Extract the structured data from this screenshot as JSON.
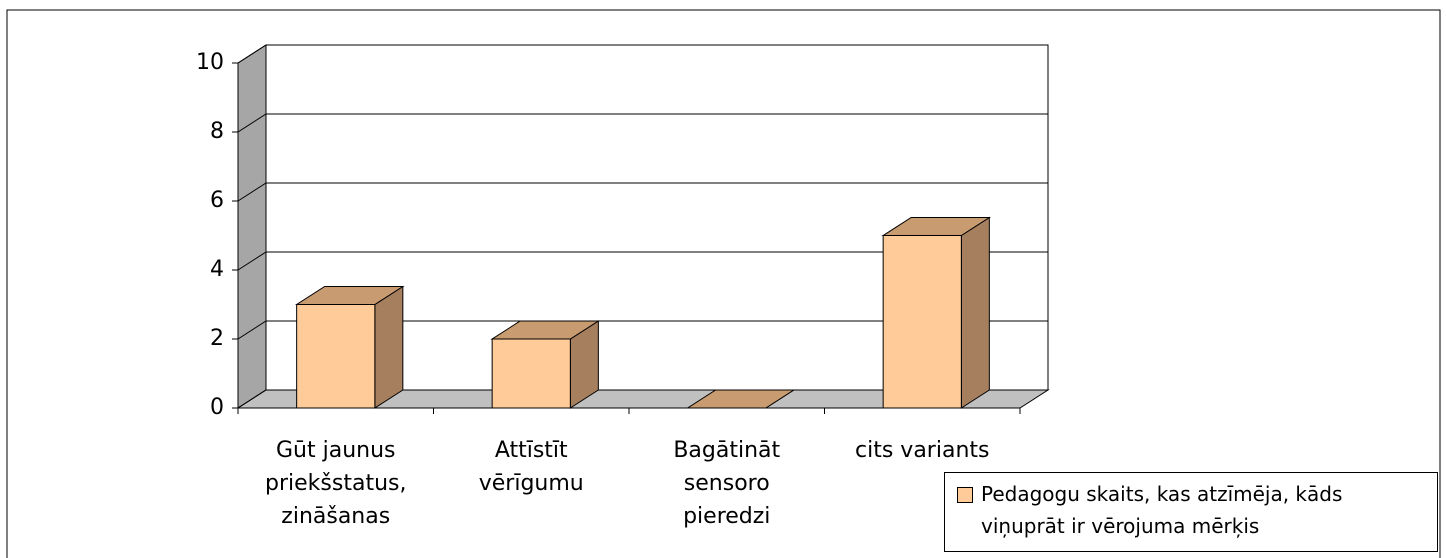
{
  "chart_data": {
    "type": "bar3d",
    "categories": [
      "Gūt jaunus priekšstatus, zināšanas",
      "Attīstīt vērīgumu",
      "Bagātināt sensoro pieredzi",
      "cits variants"
    ],
    "series": [
      {
        "name": "Pedagogu skaits, kas  atzīmēja, kāds viņuprāt  ir vērojuma mērķis",
        "color": "#ffcc99",
        "values": [
          3,
          2,
          0,
          5
        ]
      }
    ],
    "ylim": [
      0,
      10
    ],
    "yticks": [
      0,
      2,
      4,
      6,
      8,
      10
    ],
    "grid": true,
    "legend": "bottom-right"
  }
}
